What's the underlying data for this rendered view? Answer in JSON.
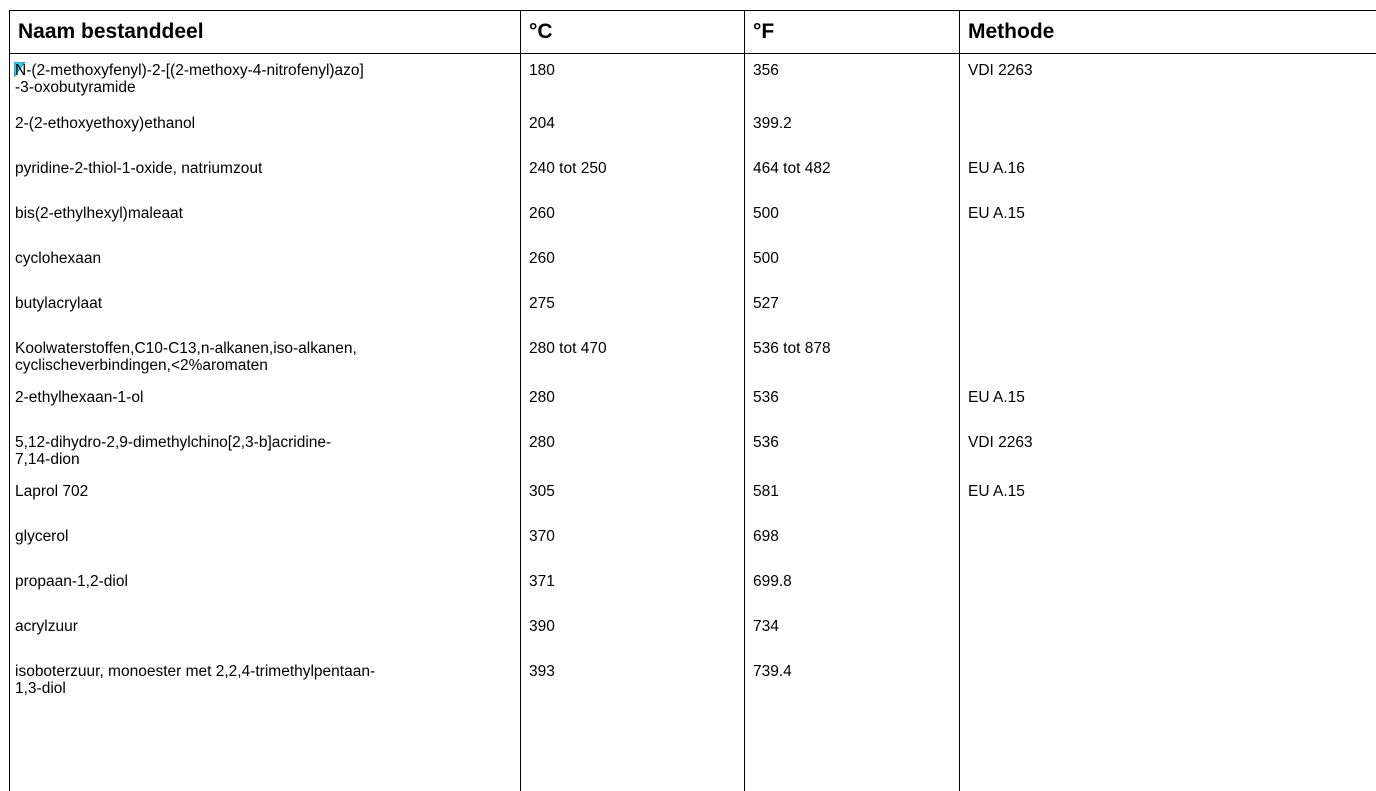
{
  "table": {
    "headers": [
      "Naam bestanddeel",
      "°C",
      "°F",
      "Methode"
    ],
    "rows": [
      {
        "name": "N-(2-methoxyfenyl)-2-[(2-methoxy-4-nitrofenyl)azo]\n-3-oxobutyramide",
        "name_mark_char": "N",
        "name_rest_line1": "-(2-methoxyfenyl)-2-[(2-methoxy-4-nitrofenyl)azo]",
        "name_line2": "-3-oxobutyramide",
        "c": "180",
        "f": "356",
        "method": "VDI 2263"
      },
      {
        "name": "2-(2-ethoxyethoxy)ethanol",
        "c": "204",
        "f": "399.2",
        "method": ""
      },
      {
        "name": "pyridine-2-thiol-1-oxide, natriumzout",
        "c": "240 tot 250",
        "f": "464 tot 482",
        "method": "EU A.16"
      },
      {
        "name": "bis(2-ethylhexyl)maleaat",
        "c": "260",
        "f": "500",
        "method": "EU A.15"
      },
      {
        "name": "cyclohexaan",
        "c": "260",
        "f": "500",
        "method": ""
      },
      {
        "name": "butylacrylaat",
        "c": "275",
        "f": "527",
        "method": ""
      },
      {
        "name": "Koolwaterstoffen,C10-C13,n-alkanen,iso-alkanen,",
        "name_line2": "cyclischeverbindingen,<2%aromaten",
        "c": "280 tot 470",
        "f": "536 tot 878",
        "method": ""
      },
      {
        "name": "2-ethylhexaan-1-ol",
        "c": "280",
        "f": "536",
        "method": "EU A.15"
      },
      {
        "name": "5,12-dihydro-2,9-dimethylchino[2,3-b]acridine-",
        "name_line2": "7,14-dion",
        "c": "280",
        "f": "536",
        "method": "VDI 2263"
      },
      {
        "name": "Laprol 702",
        "c": "305",
        "f": "581",
        "method": "EU A.15"
      },
      {
        "name": "glycerol",
        "c": "370",
        "f": "698",
        "method": ""
      },
      {
        "name": "propaan-1,2-diol",
        "c": "371",
        "f": "699.8",
        "method": ""
      },
      {
        "name": "acrylzuur",
        "c": "390",
        "f": "734",
        "method": ""
      },
      {
        "name": "isoboterzuur, monoester met 2,2,4-trimethylpentaan-",
        "name_line2": "1,3-diol",
        "c": "393",
        "f": "739.4",
        "method": ""
      }
    ]
  },
  "colors": {
    "marker_fill": "#3fc6e8",
    "marker_stroke": "#1a7fa8"
  }
}
